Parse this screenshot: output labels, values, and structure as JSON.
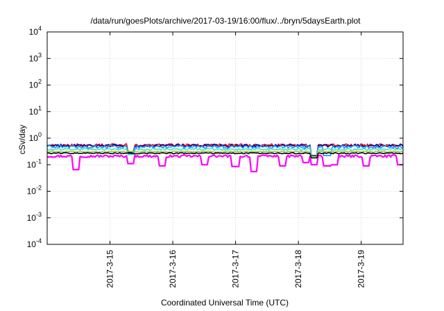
{
  "chart_data": {
    "type": "line",
    "title": "/data/run/goesPlots/archive/2017-03-19/16:00/flux/../bryn/5daysEarth.plot",
    "xlabel": "Coordinated Universal Time (UTC)",
    "ylabel": "cSv/day",
    "yscale": "log",
    "ylim": [
      0.0001,
      10000
    ],
    "y_ticks": [
      {
        "exp": "-4",
        "value": 0.0001
      },
      {
        "exp": "-3",
        "value": 0.001
      },
      {
        "exp": "-2",
        "value": 0.01
      },
      {
        "exp": "-1",
        "value": 0.1
      },
      {
        "exp": "0",
        "value": 1
      },
      {
        "exp": "1",
        "value": 10
      },
      {
        "exp": "2",
        "value": 100
      },
      {
        "exp": "3",
        "value": 1000
      },
      {
        "exp": "4",
        "value": 10000
      }
    ],
    "y_tick_base": "10",
    "xlim": [
      "2017-03-14 00:00",
      "2017-03-19 16:00"
    ],
    "x_ticks": [
      "2017-3-15",
      "2017-3-16",
      "2017-3-17",
      "2017-3-18",
      "2017-3-19"
    ],
    "grid": true,
    "legend": "none",
    "series": [
      {
        "color": "#ff00ff",
        "baseline": 0.21,
        "jitter": 0.1,
        "dips": [
          [
            "2017-03-14 11:00",
            0.065
          ],
          [
            "2017-03-15 08:00",
            0.11
          ],
          [
            "2017-03-15 20:00",
            0.09
          ],
          [
            "2017-03-16 12:00",
            0.1
          ],
          [
            "2017-03-17 00:00",
            0.085
          ],
          [
            "2017-03-17 07:00",
            0.055
          ],
          [
            "2017-03-17 18:00",
            0.09
          ],
          [
            "2017-03-18 03:00",
            0.12
          ],
          [
            "2017-03-18 06:00",
            0.1
          ],
          [
            "2017-03-18 11:00",
            0.09
          ],
          [
            "2017-03-18 14:00",
            0.1
          ],
          [
            "2017-03-19 02:00",
            0.09
          ],
          [
            "2017-03-19 15:00",
            0.1
          ]
        ]
      },
      {
        "color": "#ff0000",
        "baseline": 0.55,
        "jitter": 0.12,
        "dips": [
          [
            "2017-03-15 08:00",
            0.3
          ],
          [
            "2017-03-18 06:00",
            0.22
          ]
        ]
      },
      {
        "color": "#00008b",
        "baseline": 0.52,
        "jitter": 0.12,
        "dips": [
          [
            "2017-03-15 08:00",
            0.3
          ],
          [
            "2017-03-18 06:00",
            0.22
          ]
        ]
      },
      {
        "color": "#1e90ff",
        "baseline": 0.47,
        "jitter": 0.14,
        "dips": [
          [
            "2017-03-15 08:00",
            0.26
          ],
          [
            "2017-03-18 06:00",
            0.2
          ],
          [
            "2017-03-18 11:00",
            0.22
          ]
        ]
      },
      {
        "color": "#40e0d0",
        "baseline": 0.38,
        "jitter": 0.08,
        "dips": [
          [
            "2017-03-15 08:00",
            0.24
          ],
          [
            "2017-03-18 06:00",
            0.2
          ]
        ]
      },
      {
        "color": "#9acd32",
        "baseline": 0.31,
        "jitter": 0.05,
        "dips": [
          [
            "2017-03-18 06:00",
            0.2
          ]
        ]
      },
      {
        "color": "#000000",
        "baseline": 0.27,
        "jitter": 0.05,
        "dips": [
          [
            "2017-03-18 06:00",
            0.18
          ]
        ]
      }
    ]
  }
}
